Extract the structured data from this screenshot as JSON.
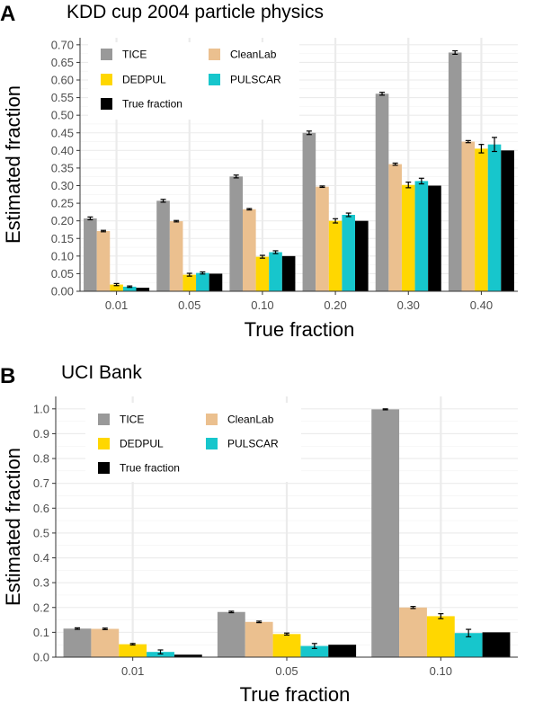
{
  "chart_data": [
    {
      "type": "bar",
      "panel_letter": "A",
      "title": "KDD cup 2004 particle physics",
      "xlabel": "True fraction",
      "ylabel": "Estimated fraction",
      "categories": [
        "0.01",
        "0.05",
        "0.10",
        "0.20",
        "0.30",
        "0.40"
      ],
      "ylim": [
        0,
        0.72
      ],
      "yticks": [
        0.0,
        0.05,
        0.1,
        0.15,
        0.2,
        0.25,
        0.3,
        0.35,
        0.4,
        0.45,
        0.5,
        0.55,
        0.6,
        0.65,
        0.7
      ],
      "ytick_labels": [
        "0.00",
        "0.05",
        "0.10",
        "0.15",
        "0.20",
        "0.25",
        "0.30",
        "0.35",
        "0.40",
        "0.45",
        "0.50",
        "0.55",
        "0.60",
        "0.65",
        "0.70"
      ],
      "grid": true,
      "legend_position": "top-left",
      "series": [
        {
          "name": "TICE",
          "color": "#999999",
          "values": [
            0.207,
            0.257,
            0.326,
            0.45,
            0.561,
            0.678
          ],
          "errors": [
            0.004,
            0.004,
            0.004,
            0.005,
            0.004,
            0.005
          ]
        },
        {
          "name": "CleanLab",
          "color": "#ebc08f",
          "values": [
            0.171,
            0.199,
            0.233,
            0.297,
            0.361,
            0.425
          ],
          "errors": [
            0.002,
            0.002,
            0.002,
            0.002,
            0.003,
            0.003
          ]
        },
        {
          "name": "DEDPUL",
          "color": "#ffd700",
          "values": [
            0.019,
            0.047,
            0.098,
            0.2,
            0.302,
            0.405
          ],
          "errors": [
            0.003,
            0.004,
            0.004,
            0.006,
            0.008,
            0.012
          ]
        },
        {
          "name": "PULSCAR",
          "color": "#17c6cc",
          "values": [
            0.013,
            0.052,
            0.111,
            0.217,
            0.313,
            0.417
          ],
          "errors": [
            0.002,
            0.003,
            0.004,
            0.005,
            0.008,
            0.02
          ]
        },
        {
          "name": "True fraction",
          "color": "#000000",
          "values": [
            0.01,
            0.05,
            0.1,
            0.2,
            0.3,
            0.4
          ],
          "errors": [
            0,
            0,
            0,
            0,
            0,
            0
          ]
        }
      ]
    },
    {
      "type": "bar",
      "panel_letter": "B",
      "title": "UCI Bank",
      "xlabel": "True fraction",
      "ylabel": "Estimated fraction",
      "categories": [
        "0.01",
        "0.05",
        "0.10"
      ],
      "ylim": [
        0,
        1.05
      ],
      "yticks": [
        0.0,
        0.1,
        0.2,
        0.3,
        0.4,
        0.5,
        0.6,
        0.7,
        0.8,
        0.9,
        1.0
      ],
      "ytick_labels": [
        "0.0",
        "0.1",
        "0.2",
        "0.3",
        "0.4",
        "0.5",
        "0.6",
        "0.7",
        "0.8",
        "0.9",
        "1.0"
      ],
      "grid": true,
      "legend_position": "top-left",
      "series": [
        {
          "name": "TICE",
          "color": "#999999",
          "values": [
            0.115,
            0.182,
            0.998
          ],
          "errors": [
            0.003,
            0.003,
            0.002
          ]
        },
        {
          "name": "CleanLab",
          "color": "#ebc08f",
          "values": [
            0.114,
            0.142,
            0.2
          ],
          "errors": [
            0.003,
            0.003,
            0.004
          ]
        },
        {
          "name": "DEDPUL",
          "color": "#ffd700",
          "values": [
            0.052,
            0.093,
            0.165
          ],
          "errors": [
            0.003,
            0.004,
            0.01
          ]
        },
        {
          "name": "PULSCAR",
          "color": "#17c6cc",
          "values": [
            0.021,
            0.045,
            0.097
          ],
          "errors": [
            0.008,
            0.01,
            0.015
          ]
        },
        {
          "name": "True fraction",
          "color": "#000000",
          "values": [
            0.01,
            0.05,
            0.1
          ],
          "errors": [
            0,
            0,
            0
          ]
        }
      ]
    }
  ]
}
